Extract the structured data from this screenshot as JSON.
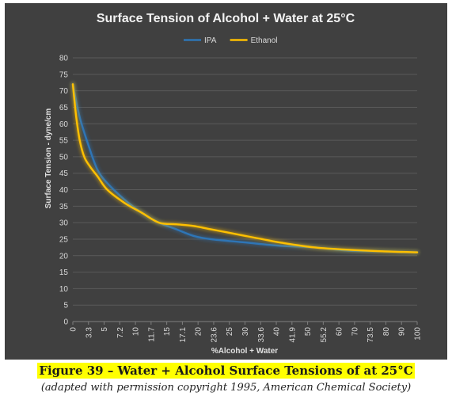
{
  "chart_data": {
    "type": "line",
    "title": "Surface Tension of Alcohol + Water at 25°C",
    "xlabel": "%Alcohol + Water",
    "ylabel": "Surface Tension - dyne/cm",
    "ylim": [
      0,
      80
    ],
    "yticks": [
      0,
      5,
      10,
      15,
      20,
      25,
      30,
      35,
      40,
      45,
      50,
      55,
      60,
      65,
      70,
      75,
      80
    ],
    "xlim": [
      0,
      100
    ],
    "xtick_labels": [
      "0",
      "3.3",
      "5",
      "7.2",
      "10",
      "11.7",
      "15",
      "17.1",
      "20",
      "23.6",
      "25",
      "30",
      "33.6",
      "40",
      "41.9",
      "50",
      "55.2",
      "60",
      "70",
      "73.5",
      "80",
      "90",
      "100"
    ],
    "grid": true,
    "legend_position": "top",
    "series": [
      {
        "name": "IPA",
        "color": "#2e75b6",
        "x": [
          0,
          2,
          5,
          7.2,
          10,
          15,
          20,
          25,
          30,
          35,
          40,
          50,
          60,
          70,
          80,
          90,
          100
        ],
        "y": [
          72,
          62,
          52,
          46,
          42,
          37,
          33,
          30,
          28,
          26,
          25,
          24,
          23,
          22.5,
          21.5,
          21.3,
          21
        ]
      },
      {
        "name": "Ethanol",
        "color": "#ffc000",
        "x": [
          0,
          1,
          2,
          3.3,
          5,
          7.2,
          10,
          15,
          20,
          25,
          30,
          35,
          40,
          45,
          50,
          55,
          60,
          70,
          80,
          90,
          100
        ],
        "y": [
          72,
          62,
          55,
          50,
          47,
          44,
          40,
          36,
          33,
          30,
          29.5,
          29,
          28,
          27,
          26,
          25,
          24,
          22.5,
          21.8,
          21.3,
          21
        ]
      }
    ]
  },
  "caption": {
    "figure_title": "Figure 39 – Water + Alcohol Surface Tensions of at 25°C",
    "subtitle": "(adapted with permission copyright 1995, American Chemical Society)"
  }
}
